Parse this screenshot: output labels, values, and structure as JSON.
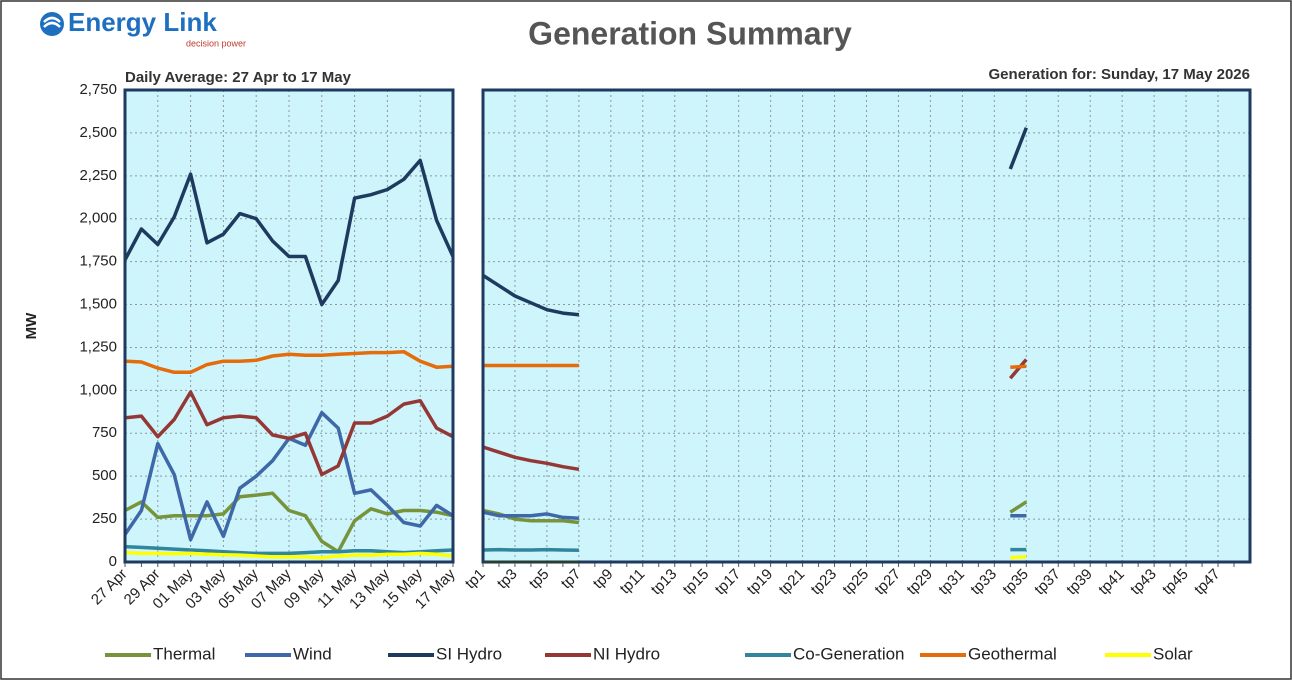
{
  "title": "Generation Summary",
  "logo": {
    "name": "Energy Link",
    "tagline": "decision power"
  },
  "chart_data": [
    {
      "type": "line",
      "subtitle": "Daily Average: 27 Apr to 17 May",
      "y_label": "MW",
      "categories": [
        "27 Apr",
        null,
        "29 Apr",
        null,
        "01 May",
        null,
        "03 May",
        null,
        "05 May",
        null,
        "07 May",
        null,
        "09 May",
        null,
        "11 May",
        null,
        "13 May",
        null,
        "15 May",
        null,
        "17 May"
      ],
      "ylim": [
        0,
        2750
      ],
      "yticks": [
        0,
        250,
        500,
        750,
        {
          "value": 1000,
          "label": "1,000"
        },
        {
          "value": 1250,
          "label": "1,250"
        },
        {
          "value": 1500,
          "label": "1,500"
        },
        {
          "value": 1750,
          "label": "1,750"
        },
        {
          "value": 2000,
          "label": "2,000"
        },
        {
          "value": 2250,
          "label": "2,250"
        },
        {
          "value": 2500,
          "label": "2,500"
        },
        {
          "value": 2750,
          "label": "2,750"
        }
      ],
      "grid": true,
      "series": [
        {
          "name": "Thermal",
          "color": "#77933c",
          "values": [
            300,
            350,
            260,
            270,
            270,
            270,
            280,
            380,
            390,
            400,
            300,
            270,
            120,
            60,
            240,
            310,
            280,
            300,
            300,
            290,
            270
          ]
        },
        {
          "name": "Wind",
          "color": "#3f68a8",
          "values": [
            160,
            300,
            690,
            510,
            130,
            350,
            150,
            430,
            500,
            590,
            720,
            680,
            870,
            780,
            400,
            420,
            330,
            230,
            210,
            330,
            270
          ]
        },
        {
          "name": "SI Hydro",
          "color": "#1f3a5f",
          "values": [
            1760,
            1940,
            1850,
            2010,
            2260,
            1860,
            1910,
            2030,
            2000,
            1870,
            1780,
            1780,
            1500,
            1640,
            2120,
            2140,
            2170,
            2230,
            2340,
            1990,
            1780
          ]
        },
        {
          "name": "NI Hydro",
          "color": "#953735",
          "values": [
            840,
            850,
            730,
            830,
            990,
            800,
            840,
            850,
            840,
            740,
            720,
            750,
            510,
            560,
            810,
            810,
            850,
            920,
            940,
            780,
            730
          ]
        },
        {
          "name": "Co-Generation",
          "color": "#31859c",
          "values": [
            90,
            85,
            80,
            75,
            70,
            65,
            60,
            55,
            50,
            50,
            50,
            55,
            60,
            60,
            65,
            65,
            60,
            55,
            60,
            65,
            70
          ]
        },
        {
          "name": "Geothermal",
          "color": "#e46c0a",
          "values": [
            1170,
            1165,
            1130,
            1105,
            1105,
            1150,
            1170,
            1170,
            1175,
            1200,
            1210,
            1205,
            1205,
            1210,
            1215,
            1220,
            1220,
            1225,
            1170,
            1135,
            1140
          ]
        },
        {
          "name": "Solar",
          "color": "#ffff00",
          "values": [
            55,
            50,
            50,
            48,
            50,
            45,
            42,
            40,
            35,
            30,
            30,
            30,
            25,
            35,
            40,
            40,
            45,
            45,
            50,
            45,
            35
          ]
        }
      ]
    },
    {
      "type": "line",
      "subtitle": "Generation for: Sunday, 17 May 2026",
      "categories": [
        "tp1",
        null,
        "tp3",
        null,
        "tp5",
        null,
        "tp7",
        null,
        "tp9",
        null,
        "tp11",
        null,
        "tp13",
        null,
        "tp15",
        null,
        "tp17",
        null,
        "tp19",
        null,
        "tp21",
        null,
        "tp23",
        null,
        "tp25",
        null,
        "tp27",
        null,
        "tp29",
        null,
        "tp31",
        null,
        "tp33",
        null,
        "tp35",
        null,
        "tp37",
        null,
        "tp39",
        null,
        "tp41",
        null,
        "tp43",
        null,
        "tp45",
        null,
        "tp47",
        null
      ],
      "ylim": [
        0,
        2750
      ],
      "grid": true,
      "series": [
        {
          "color": "#77933c",
          "values": [
            300,
            280,
            250,
            240,
            240,
            240,
            230,
            null,
            null,
            null,
            null,
            null,
            null,
            null,
            null,
            null,
            null,
            null,
            null,
            null,
            null,
            null,
            null,
            null,
            null,
            null,
            null,
            null,
            null,
            null,
            null,
            null,
            null,
            290,
            350,
            null,
            null,
            null,
            null,
            null,
            null,
            null,
            null,
            null,
            null,
            null,
            null,
            null
          ]
        },
        {
          "color": "#3f68a8",
          "values": [
            290,
            270,
            270,
            270,
            280,
            260,
            255,
            null,
            null,
            null,
            null,
            null,
            null,
            null,
            null,
            null,
            null,
            null,
            null,
            null,
            null,
            null,
            null,
            null,
            null,
            null,
            null,
            null,
            null,
            null,
            null,
            null,
            null,
            270,
            270,
            null,
            null,
            null,
            null,
            null,
            null,
            null,
            null,
            null,
            null,
            null,
            null,
            null
          ]
        },
        {
          "color": "#1f3a5f",
          "values": [
            1670,
            1610,
            1550,
            1510,
            1470,
            1450,
            1440,
            null,
            null,
            null,
            null,
            null,
            null,
            null,
            null,
            null,
            null,
            null,
            null,
            null,
            null,
            null,
            null,
            null,
            null,
            null,
            null,
            null,
            null,
            null,
            null,
            null,
            null,
            2290,
            2530,
            null,
            null,
            null,
            null,
            null,
            null,
            null,
            null,
            null,
            null,
            null,
            null,
            null
          ]
        },
        {
          "color": "#953735",
          "values": [
            670,
            640,
            610,
            590,
            575,
            555,
            540,
            null,
            null,
            null,
            null,
            null,
            null,
            null,
            null,
            null,
            null,
            null,
            null,
            null,
            null,
            null,
            null,
            null,
            null,
            null,
            null,
            null,
            null,
            null,
            null,
            null,
            null,
            1070,
            1180,
            null,
            null,
            null,
            null,
            null,
            null,
            null,
            null,
            null,
            null,
            null,
            null,
            null
          ]
        },
        {
          "color": "#31859c",
          "values": [
            70,
            72,
            70,
            70,
            72,
            70,
            68,
            null,
            null,
            null,
            null,
            null,
            null,
            null,
            null,
            null,
            null,
            null,
            null,
            null,
            null,
            null,
            null,
            null,
            null,
            null,
            null,
            null,
            null,
            null,
            null,
            null,
            null,
            72,
            72,
            null,
            null,
            null,
            null,
            null,
            null,
            null,
            null,
            null,
            null,
            null,
            null,
            null
          ]
        },
        {
          "color": "#e46c0a",
          "values": [
            1145,
            1145,
            1145,
            1145,
            1145,
            1145,
            1145,
            null,
            null,
            null,
            null,
            null,
            null,
            null,
            null,
            null,
            null,
            null,
            null,
            null,
            null,
            null,
            null,
            null,
            null,
            null,
            null,
            null,
            null,
            null,
            null,
            null,
            null,
            1135,
            1140,
            null,
            null,
            null,
            null,
            null,
            null,
            null,
            null,
            null,
            null,
            null,
            null,
            null
          ]
        },
        {
          "color": "#ffff00",
          "values": [
            0,
            0,
            0,
            0,
            0,
            0,
            0,
            null,
            null,
            null,
            null,
            null,
            null,
            null,
            null,
            null,
            null,
            null,
            null,
            null,
            null,
            null,
            null,
            null,
            null,
            null,
            null,
            null,
            null,
            null,
            null,
            null,
            null,
            25,
            30,
            null,
            null,
            null,
            null,
            null,
            null,
            null,
            null,
            null,
            null,
            null,
            null,
            null
          ]
        }
      ]
    }
  ]
}
